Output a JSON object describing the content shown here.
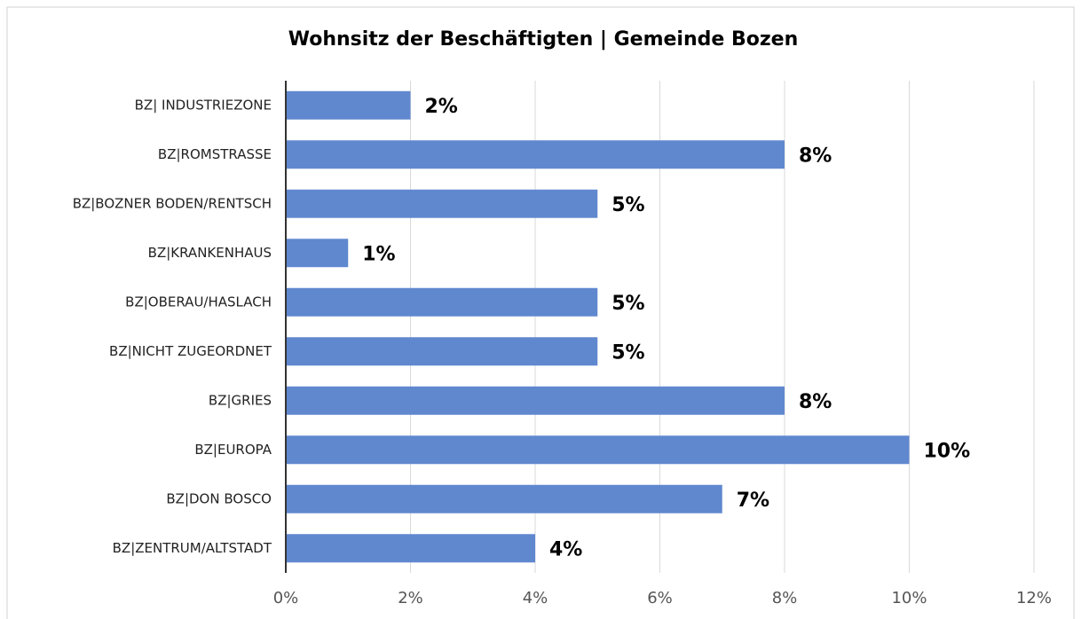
{
  "chart_data": {
    "type": "bar",
    "orientation": "horizontal",
    "title": "Wohnsitz der Beschäftigten | Gemeinde Bozen",
    "categories": [
      "BZ| INDUSTRIEZONE",
      "BZ|ROMSTRASSE",
      "BZ|BOZNER BODEN/RENTSCH",
      "BZ|KRANKENHAUS",
      "BZ|OBERAU/HASLACH",
      "BZ|NICHT ZUGEORDNET",
      "BZ|GRIES",
      "BZ|EUROPA",
      "BZ|DON BOSCO",
      "BZ|ZENTRUM/ALTSTADT"
    ],
    "values": [
      2,
      8,
      5,
      1,
      5,
      5,
      8,
      10,
      7,
      4
    ],
    "value_labels": [
      "2%",
      "8%",
      "5%",
      "1%",
      "5%",
      "5%",
      "8%",
      "10%",
      "7%",
      "4%"
    ],
    "color": "#6088cf",
    "xlim": [
      0,
      12
    ],
    "xticks": [
      {
        "value": 0,
        "label": "0%"
      },
      {
        "value": 2,
        "label": "2%"
      },
      {
        "value": 4,
        "label": "4%"
      },
      {
        "value": 6,
        "label": "6%"
      },
      {
        "value": 8,
        "label": "8%"
      },
      {
        "value": 10,
        "label": "10%"
      },
      {
        "value": 12,
        "label": "12%"
      }
    ],
    "grid": true
  }
}
